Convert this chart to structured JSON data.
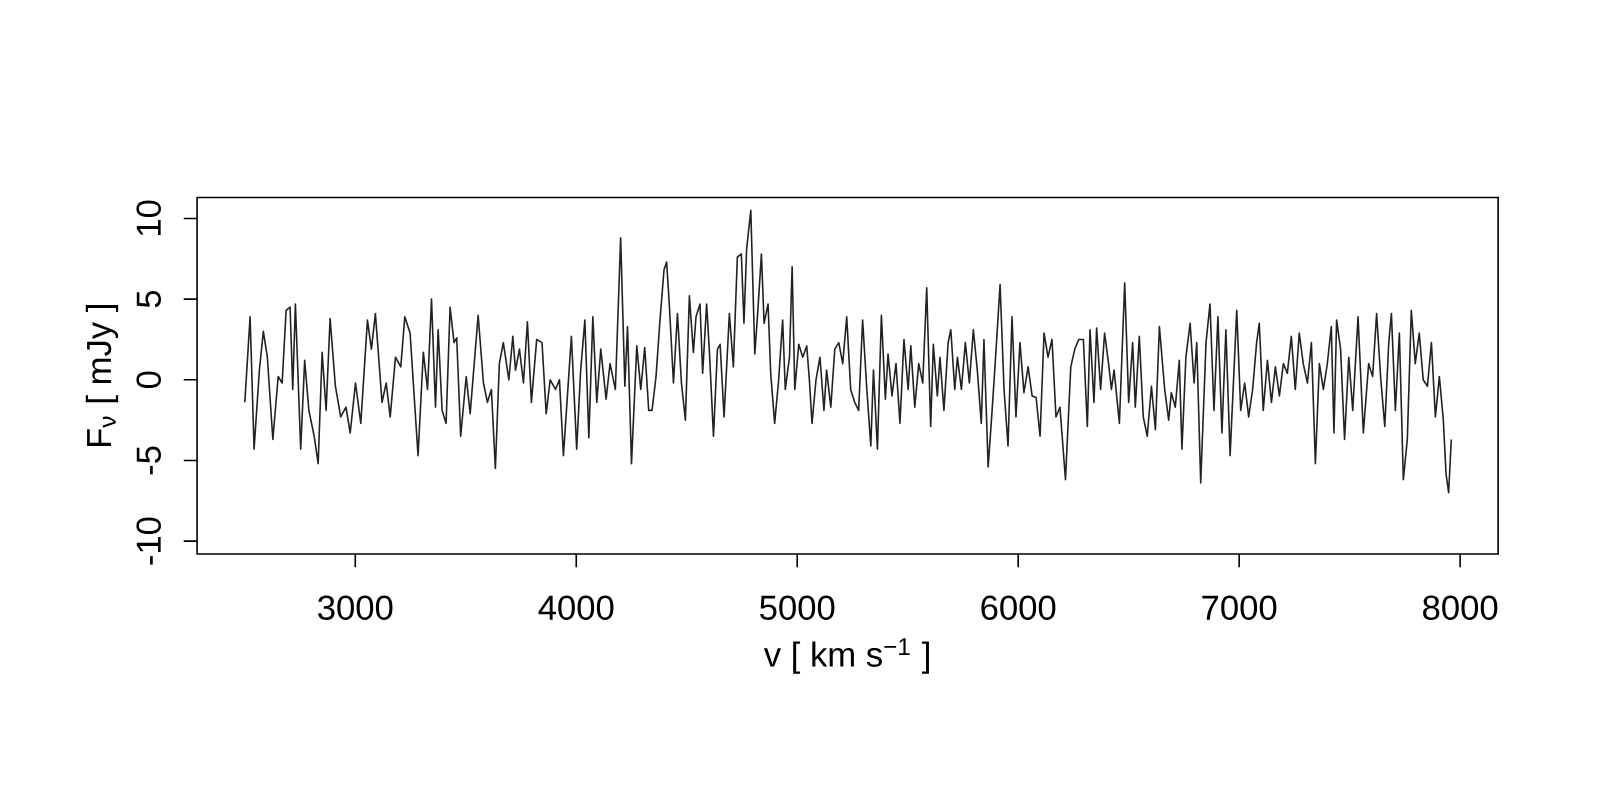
{
  "chart_data": {
    "type": "line",
    "xlabel": "v [ km s$^{−1}$ ]",
    "ylabel": "F$_{ν}$ [ mJy ]",
    "color": "#222222",
    "xlim": [
      2284,
      8172
    ],
    "ylim": [
      -10.8,
      11.3
    ],
    "xticks": [
      3000,
      4000,
      5000,
      6000,
      7000,
      8000
    ],
    "yticks": [
      -10,
      -5,
      0,
      5,
      10
    ],
    "x": [
      2500,
      2524,
      2542,
      2566,
      2584,
      2602,
      2627,
      2651,
      2669,
      2687,
      2705,
      2717,
      2729,
      2753,
      2771,
      2790,
      2814,
      2832,
      2850,
      2868,
      2886,
      2910,
      2934,
      2958,
      2977,
      3001,
      3025,
      3055,
      3073,
      3091,
      3121,
      3140,
      3158,
      3182,
      3206,
      3224,
      3248,
      3284,
      3308,
      3327,
      3345,
      3363,
      3375,
      3393,
      3411,
      3429,
      3447,
      3459,
      3477,
      3502,
      3520,
      3556,
      3580,
      3598,
      3616,
      3634,
      3652,
      3670,
      3695,
      3713,
      3725,
      3743,
      3761,
      3779,
      3797,
      3821,
      3845,
      3864,
      3882,
      3906,
      3924,
      3942,
      3960,
      3978,
      4002,
      4020,
      4039,
      4057,
      4075,
      4093,
      4111,
      4135,
      4153,
      4177,
      4201,
      4220,
      4232,
      4250,
      4274,
      4292,
      4310,
      4328,
      4343,
      4361,
      4379,
      4397,
      4409,
      4421,
      4440,
      4458,
      4476,
      4494,
      4512,
      4530,
      4542,
      4560,
      4572,
      4590,
      4602,
      4621,
      4639,
      4651,
      4669,
      4693,
      4711,
      4729,
      4747,
      4759,
      4771,
      4790,
      4808,
      4820,
      4838,
      4850,
      4868,
      4880,
      4898,
      4916,
      4934,
      4946,
      4965,
      4977,
      4989,
      5007,
      5025,
      5043,
      5055,
      5067,
      5085,
      5103,
      5121,
      5133,
      5152,
      5170,
      5188,
      5206,
      5224,
      5242,
      5260,
      5278,
      5296,
      5315,
      5333,
      5345,
      5363,
      5381,
      5399,
      5411,
      5429,
      5447,
      5465,
      5483,
      5502,
      5514,
      5532,
      5550,
      5568,
      5586,
      5604,
      5616,
      5634,
      5646,
      5664,
      5683,
      5695,
      5713,
      5725,
      5743,
      5761,
      5779,
      5797,
      5815,
      5833,
      5845,
      5864,
      5882,
      5900,
      5918,
      5936,
      5954,
      5972,
      5990,
      6008,
      6026,
      6045,
      6063,
      6081,
      6099,
      6117,
      6135,
      6153,
      6171,
      6189,
      6214,
      6238,
      6256,
      6274,
      6295,
      6313,
      6325,
      6343,
      6355,
      6373,
      6391,
      6409,
      6422,
      6434,
      6458,
      6482,
      6500,
      6518,
      6530,
      6548,
      6566,
      6584,
      6603,
      6621,
      6639,
      6663,
      6681,
      6693,
      6711,
      6729,
      6741,
      6759,
      6778,
      6796,
      6808,
      6826,
      6850,
      6868,
      6886,
      6904,
      6922,
      6940,
      6959,
      6989,
      7007,
      7025,
      7043,
      7061,
      7079,
      7091,
      7109,
      7128,
      7146,
      7164,
      7182,
      7200,
      7218,
      7236,
      7254,
      7272,
      7290,
      7309,
      7327,
      7345,
      7363,
      7381,
      7399,
      7417,
      7429,
      7441,
      7459,
      7477,
      7496,
      7514,
      7538,
      7562,
      7586,
      7604,
      7622,
      7640,
      7659,
      7677,
      7689,
      7707,
      7725,
      7743,
      7761,
      7779,
      7797,
      7815,
      7833,
      7852,
      7870,
      7888,
      7906,
      7924,
      7936,
      7948,
      7960
    ],
    "values": [
      -1.4,
      3.9,
      -4.3,
      0.6,
      3.0,
      1.4,
      -3.7,
      0.2,
      -0.2,
      4.3,
      4.5,
      -0.6,
      4.7,
      -4.3,
      1.2,
      -1.9,
      -3.5,
      -5.2,
      1.7,
      -1.9,
      3.8,
      -0.4,
      -2.3,
      -1.7,
      -3.3,
      -0.2,
      -2.7,
      3.7,
      1.9,
      4.1,
      -1.4,
      -0.2,
      -2.3,
      1.4,
      0.8,
      3.9,
      2.9,
      -4.7,
      1.7,
      -0.6,
      5.0,
      -1.7,
      3.1,
      -1.9,
      -2.7,
      4.5,
      2.3,
      2.6,
      -3.5,
      0.2,
      -2.1,
      4.0,
      -0.2,
      -1.4,
      -0.6,
      -5.5,
      1.0,
      2.3,
      0.0,
      2.7,
      0.6,
      1.9,
      -0.2,
      3.6,
      -1.4,
      2.5,
      2.3,
      -2.1,
      0.0,
      -0.6,
      0.0,
      -4.7,
      -1.0,
      2.7,
      -4.3,
      0.6,
      3.7,
      -3.6,
      3.9,
      -1.4,
      1.9,
      -1.2,
      1.0,
      -0.6,
      8.8,
      -0.4,
      3.3,
      -5.2,
      2.1,
      -0.6,
      2.0,
      -1.9,
      -1.9,
      0.2,
      3.7,
      6.8,
      7.3,
      4.7,
      -0.2,
      4.1,
      -0.2,
      -2.5,
      5.2,
      1.7,
      3.9,
      4.7,
      0.4,
      4.7,
      1.9,
      -3.5,
      1.9,
      2.2,
      -2.3,
      4.1,
      0.8,
      7.6,
      7.8,
      3.5,
      8.1,
      10.5,
      1.6,
      3.9,
      7.8,
      3.5,
      4.7,
      0.4,
      -2.7,
      0.0,
      3.7,
      -0.6,
      1.4,
      7.0,
      -0.6,
      2.2,
      1.4,
      2.1,
      0.0,
      -2.7,
      0.0,
      1.4,
      -1.9,
      0.6,
      -1.7,
      1.9,
      2.3,
      1.0,
      3.9,
      -0.6,
      -1.4,
      -1.9,
      3.7,
      -0.6,
      -4.1,
      0.6,
      -4.3,
      4.0,
      -1.2,
      1.6,
      -1.0,
      1.0,
      -2.7,
      2.5,
      -0.6,
      2.1,
      -1.7,
      1.0,
      -0.2,
      5.7,
      -2.9,
      2.2,
      -1.0,
      1.4,
      -1.9,
      2.3,
      3.1,
      -0.6,
      1.4,
      -0.6,
      2.3,
      -0.2,
      3.1,
      0.6,
      -2.7,
      2.5,
      -5.4,
      -1.9,
      1.9,
      5.9,
      -0.6,
      -4.1,
      3.9,
      -2.3,
      2.3,
      -0.8,
      0.8,
      -1.0,
      -1.1,
      -3.5,
      2.9,
      1.4,
      2.5,
      -2.3,
      -1.7,
      -6.2,
      0.8,
      1.9,
      2.5,
      2.5,
      -2.9,
      3.1,
      -1.4,
      3.2,
      -0.6,
      2.9,
      1.0,
      -0.6,
      0.6,
      -2.7,
      6.0,
      -1.4,
      2.3,
      -1.7,
      2.7,
      -2.3,
      -3.5,
      -0.4,
      -3.1,
      3.3,
      -0.6,
      -2.5,
      -0.8,
      -1.7,
      1.2,
      -4.3,
      1.4,
      3.5,
      -0.2,
      2.3,
      -6.4,
      2.3,
      4.7,
      -1.9,
      3.9,
      -3.3,
      3.1,
      -4.7,
      4.3,
      -1.9,
      -0.2,
      -2.3,
      -0.6,
      2.3,
      3.5,
      -1.9,
      1.2,
      -1.4,
      0.8,
      -1.0,
      1.0,
      0.4,
      2.7,
      -0.6,
      2.9,
      1.0,
      -0.2,
      2.3,
      -5.2,
      1.0,
      -0.6,
      1.0,
      3.3,
      -3.3,
      3.7,
      1.9,
      -3.7,
      1.4,
      -1.9,
      3.9,
      -3.3,
      1.0,
      0.2,
      4.1,
      0.2,
      -2.9,
      2.3,
      4.1,
      -1.9,
      2.9,
      -6.2,
      -3.7,
      4.3,
      1.0,
      2.9,
      0.0,
      -0.4,
      2.3,
      -2.3,
      0.2,
      -2.5,
      -5.8,
      -7.0,
      -3.7
    ]
  }
}
